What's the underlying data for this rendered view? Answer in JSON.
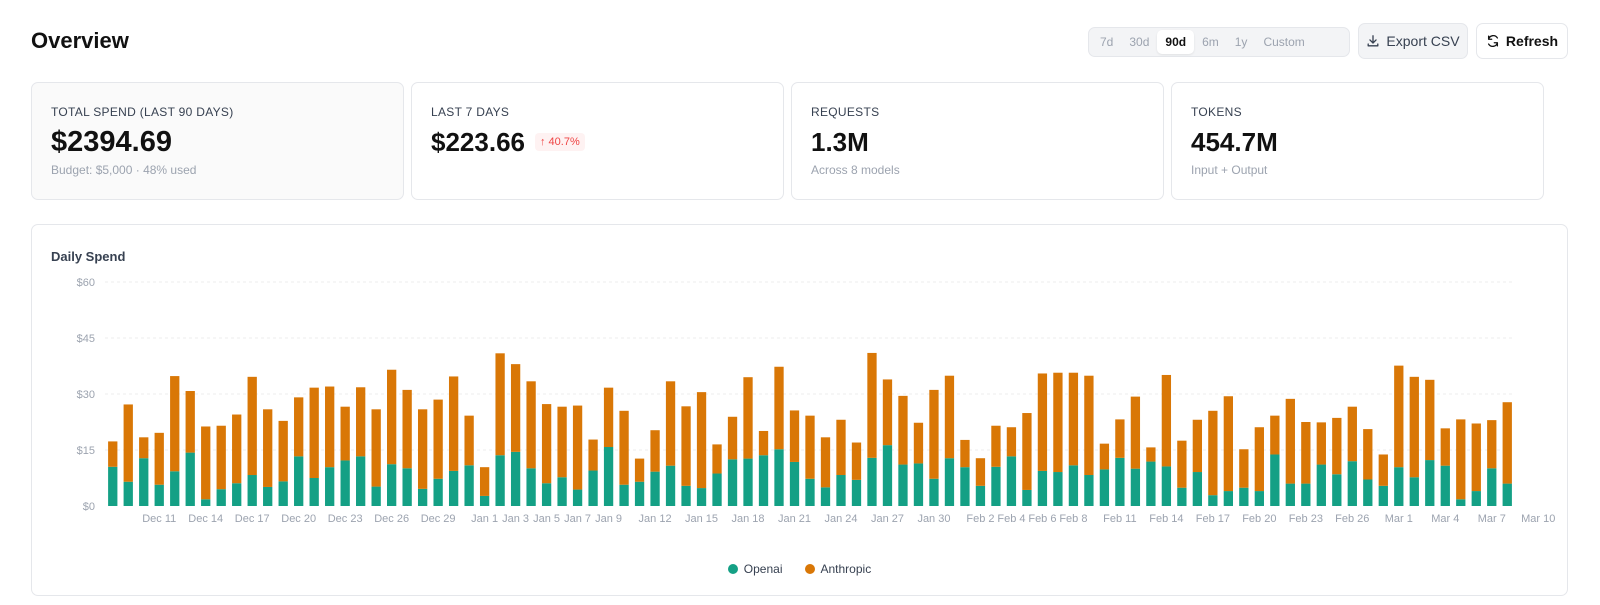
{
  "header": {
    "title": "Overview",
    "ranges": [
      {
        "label": "7d",
        "active": false
      },
      {
        "label": "30d",
        "active": false
      },
      {
        "label": "90d",
        "active": true
      },
      {
        "label": "6m",
        "active": false
      },
      {
        "label": "1y",
        "active": false
      },
      {
        "label": "Custom",
        "active": false
      }
    ],
    "export_label": "Export CSV",
    "export_icon": "download-icon",
    "refresh_label": "Refresh",
    "refresh_icon": "refresh-icon"
  },
  "cards": [
    {
      "label": "TOTAL SPEND (LAST 90 DAYS)",
      "value": "$2394.69",
      "sub": "Budget: $5,000 · 48% used",
      "badge": ""
    },
    {
      "label": "LAST 7 DAYS",
      "value": "$223.66",
      "sub": "",
      "badge": "↑ 40.7%"
    },
    {
      "label": "REQUESTS",
      "value": "1.3M",
      "sub": "Across 8 models",
      "badge": ""
    },
    {
      "label": "TOKENS",
      "value": "454.7M",
      "sub": "Input + Output",
      "badge": ""
    }
  ],
  "colors": {
    "openai": "#14a085",
    "anthropic": "#d97706",
    "badge_red": "#ef4444",
    "grid": "#eeeeee"
  },
  "chart_data": {
    "type": "bar",
    "stacked": true,
    "title": "Daily Spend",
    "xlabel": "",
    "ylabel": "",
    "ylim": [
      0,
      60
    ],
    "y_ticks": [
      "$0",
      "$15",
      "$30",
      "$45",
      "$60"
    ],
    "y_tick_values": [
      0,
      15,
      30,
      45,
      60
    ],
    "grid": true,
    "legend_position": "bottom-center",
    "x_ticks": [
      {
        "index": 3,
        "label": "Dec 11"
      },
      {
        "index": 6,
        "label": "Dec 14"
      },
      {
        "index": 9,
        "label": "Dec 17"
      },
      {
        "index": 12,
        "label": "Dec 20"
      },
      {
        "index": 15,
        "label": "Dec 23"
      },
      {
        "index": 18,
        "label": "Dec 26"
      },
      {
        "index": 21,
        "label": "Dec 29"
      },
      {
        "index": 24,
        "label": "Jan 1"
      },
      {
        "index": 26,
        "label": "Jan 3"
      },
      {
        "index": 28,
        "label": "Jan 5"
      },
      {
        "index": 30,
        "label": "Jan 7"
      },
      {
        "index": 32,
        "label": "Jan 9"
      },
      {
        "index": 35,
        "label": "Jan 12"
      },
      {
        "index": 38,
        "label": "Jan 15"
      },
      {
        "index": 41,
        "label": "Jan 18"
      },
      {
        "index": 44,
        "label": "Jan 21"
      },
      {
        "index": 47,
        "label": "Jan 24"
      },
      {
        "index": 50,
        "label": "Jan 27"
      },
      {
        "index": 53,
        "label": "Jan 30"
      },
      {
        "index": 56,
        "label": "Feb 2"
      },
      {
        "index": 58,
        "label": "Feb 4"
      },
      {
        "index": 60,
        "label": "Feb 6"
      },
      {
        "index": 62,
        "label": "Feb 8"
      },
      {
        "index": 65,
        "label": "Feb 11"
      },
      {
        "index": 68,
        "label": "Feb 14"
      },
      {
        "index": 71,
        "label": "Feb 17"
      },
      {
        "index": 74,
        "label": "Feb 20"
      },
      {
        "index": 77,
        "label": "Feb 23"
      },
      {
        "index": 80,
        "label": "Feb 26"
      },
      {
        "index": 83,
        "label": "Mar 1"
      },
      {
        "index": 86,
        "label": "Mar 4"
      },
      {
        "index": 89,
        "label": "Mar 7"
      },
      {
        "index": 92,
        "label": "Mar 10"
      }
    ],
    "series": [
      {
        "name": "Openai",
        "values": [
          10.5,
          6.5,
          12.8,
          5.7,
          9.3,
          14.3,
          1.8,
          4.5,
          6.1,
          8.3,
          5.1,
          6.6,
          13.3,
          7.5,
          10.4,
          12.2,
          13.3,
          5.2,
          11.2,
          10.1,
          4.6,
          7.3,
          9.4,
          10.9,
          2.7,
          13.6,
          14.5,
          10.1,
          6.1,
          7.7,
          4.4,
          9.5,
          15.8,
          5.7,
          6.5,
          9.2,
          10.8,
          5.4,
          4.8,
          8.7,
          12.5,
          12.7,
          13.6,
          15.2,
          11.8,
          7.3,
          5.0,
          8.3,
          7.0,
          12.9,
          16.3,
          11.1,
          11.4,
          7.3,
          12.8,
          10.4,
          5.4,
          10.5,
          13.3,
          4.3,
          9.4,
          9.1,
          10.9,
          8.3,
          9.8,
          12.9,
          10.0,
          11.9,
          10.6,
          4.9,
          9.1,
          2.9,
          4.0,
          4.9,
          4.0,
          13.8,
          6.0,
          6.0,
          11.1,
          8.5,
          12.0,
          7.1,
          5.4,
          10.4,
          7.7,
          12.3,
          10.8,
          1.8,
          4.0,
          10.1,
          6.0
        ],
        "color": "#14a085"
      },
      {
        "name": "Anthropic",
        "values": [
          6.8,
          20.7,
          5.6,
          13.9,
          25.5,
          16.5,
          19.5,
          17.0,
          18.4,
          26.3,
          20.8,
          16.2,
          15.8,
          24.2,
          21.6,
          14.4,
          18.5,
          20.7,
          25.3,
          21.0,
          21.3,
          21.2,
          25.3,
          13.3,
          7.7,
          27.3,
          23.5,
          23.3,
          21.2,
          18.9,
          22.5,
          8.3,
          15.9,
          19.8,
          6.2,
          11.1,
          22.6,
          21.3,
          25.7,
          7.8,
          11.4,
          21.8,
          6.5,
          22.1,
          13.8,
          16.9,
          13.4,
          14.8,
          10.0,
          28.1,
          17.6,
          18.4,
          10.9,
          23.8,
          22.1,
          7.3,
          7.4,
          11.0,
          7.8,
          20.6,
          26.1,
          26.6,
          24.8,
          26.6,
          6.9,
          10.3,
          19.3,
          3.8,
          24.5,
          12.6,
          14.0,
          22.6,
          25.4,
          10.3,
          17.1,
          10.4,
          22.7,
          16.5,
          11.3,
          15.1,
          14.6,
          13.5,
          8.4,
          27.2,
          26.9,
          21.5,
          10.0,
          21.4,
          18.1,
          12.9,
          21.8
        ],
        "color": "#d97706"
      }
    ]
  }
}
